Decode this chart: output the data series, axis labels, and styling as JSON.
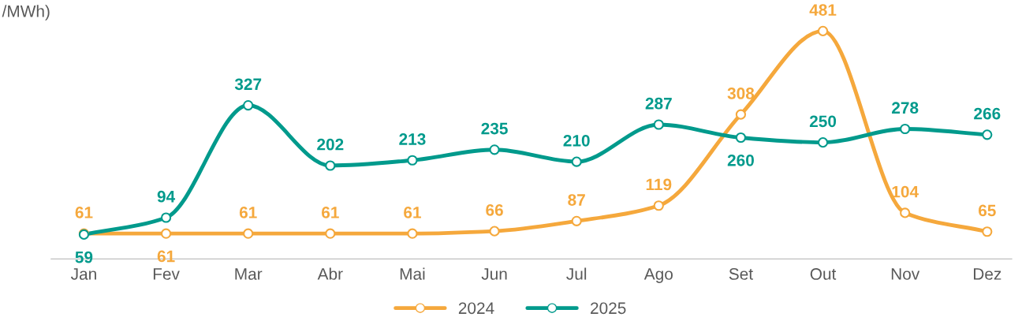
{
  "chart_data": {
    "type": "line",
    "ylabel": "/MWh)",
    "categories": [
      "Jan",
      "Fev",
      "Mar",
      "Abr",
      "Mai",
      "Jun",
      "Jul",
      "Ago",
      "Set",
      "Out",
      "Nov",
      "Dez"
    ],
    "series": [
      {
        "name": "2024",
        "color": "#f5a83c",
        "values": [
          61,
          61,
          61,
          61,
          61,
          66,
          87,
          119,
          308,
          481,
          104,
          65
        ]
      },
      {
        "name": "2025",
        "color": "#009a8c",
        "values": [
          59,
          94,
          327,
          202,
          213,
          235,
          210,
          287,
          260,
          250,
          278,
          266
        ]
      }
    ],
    "data_labels": true,
    "marker": "circle",
    "legend": "bottom"
  }
}
